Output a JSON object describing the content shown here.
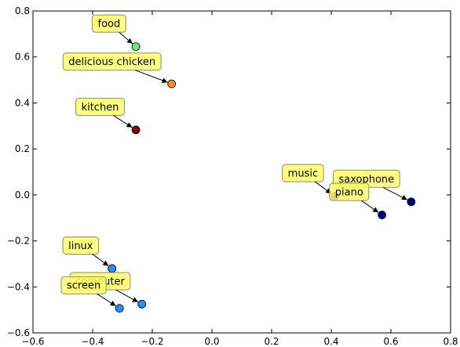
{
  "chart_data": {
    "type": "scatter",
    "title": "",
    "xlabel": "",
    "ylabel": "",
    "xlim": [
      -0.6,
      0.8
    ],
    "ylim": [
      -0.6,
      0.8
    ],
    "grid": false,
    "xticks": [
      "−0.6",
      "−0.4",
      "−0.2",
      "0.0",
      "0.2",
      "0.4",
      "0.6",
      "0.8"
    ],
    "yticks": [
      "−0.6",
      "−0.4",
      "−0.2",
      "0.0",
      "0.2",
      "0.4",
      "0.6",
      "0.8"
    ],
    "xtick_values": [
      -0.6,
      -0.4,
      -0.2,
      0.0,
      0.2,
      0.4,
      0.6,
      0.8
    ],
    "ytick_values": [
      -0.6,
      -0.4,
      -0.2,
      0.0,
      0.2,
      0.4,
      0.6,
      0.8
    ],
    "points": [
      {
        "label": "food",
        "x": -0.255,
        "y": 0.645,
        "color": "#66ee77",
        "label_x": -0.345,
        "label_y": 0.745
      },
      {
        "label": "delicious chicken",
        "x": -0.135,
        "y": 0.483,
        "color": "#ff8c1a",
        "label_x": -0.335,
        "label_y": 0.58
      },
      {
        "label": "kitchen",
        "x": -0.255,
        "y": 0.283,
        "color": "#8b0000",
        "label_x": -0.375,
        "label_y": 0.383
      },
      {
        "label": "music",
        "x": 0.412,
        "y": -0.005,
        "color": "#1a1a4d",
        "label_x": 0.305,
        "label_y": 0.095
      },
      {
        "label": "saxophone",
        "x": 0.668,
        "y": -0.03,
        "color": "#000080",
        "label_x": 0.518,
        "label_y": 0.07
      },
      {
        "label": "piano",
        "x": 0.57,
        "y": -0.087,
        "color": "#000080",
        "label_x": 0.46,
        "label_y": 0.013
      },
      {
        "label": "linux",
        "x": -0.335,
        "y": -0.32,
        "color": "#1e90ff",
        "label_x": -0.44,
        "label_y": -0.22
      },
      {
        "label": "computer",
        "x": -0.235,
        "y": -0.475,
        "color": "#1e90ff",
        "label_x": -0.375,
        "label_y": -0.375
      },
      {
        "label": "screen",
        "x": -0.31,
        "y": -0.493,
        "color": "#1e90ff",
        "label_x": -0.43,
        "label_y": -0.393
      }
    ]
  }
}
